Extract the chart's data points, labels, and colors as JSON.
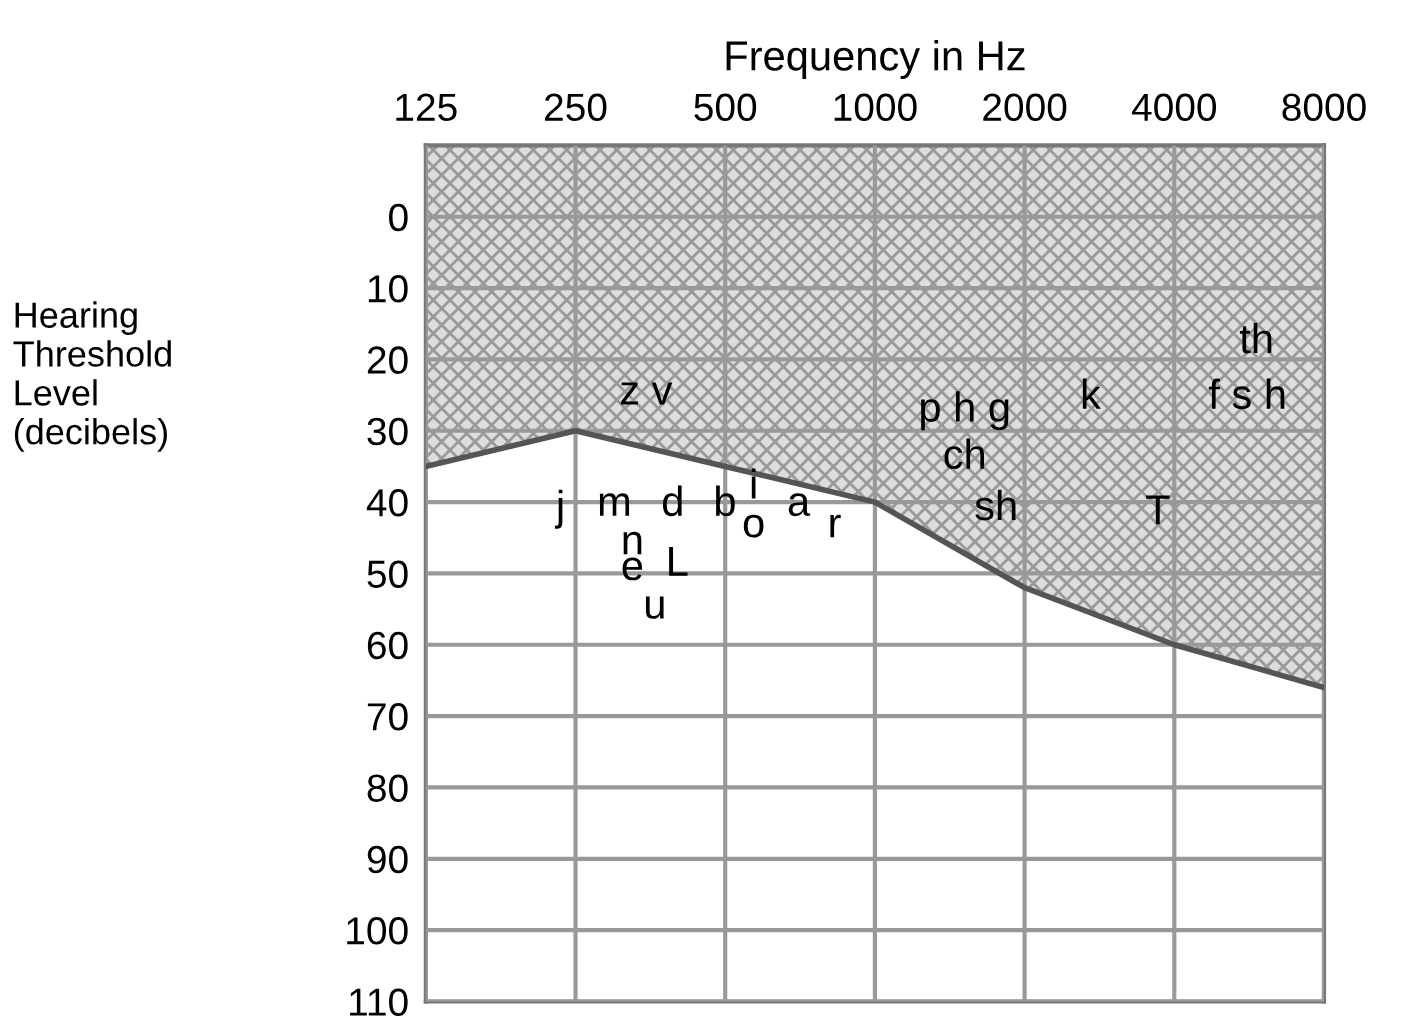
{
  "chart_data": {
    "type": "line",
    "xlabel": "Frequency in Hz",
    "ylabel": "Hearing\nThreshold\nLevel\n(decibels)",
    "x": [
      125,
      250,
      500,
      1000,
      2000,
      4000,
      8000
    ],
    "series": [
      {
        "color": "#555555",
        "values": [
          35,
          30,
          35,
          40,
          52,
          60,
          66
        ],
        "lower": [
          -10,
          -10,
          -10,
          -10,
          -10,
          -10,
          -10
        ],
        "upper": [
          35,
          30,
          35,
          40,
          52,
          60,
          66
        ]
      }
    ],
    "log": "x",
    "xlim": [
      125,
      8000
    ],
    "xticks": [
      125,
      250,
      500,
      1000,
      2000,
      4000,
      8000
    ],
    "ylim": [
      110,
      -10
    ],
    "yticks": [
      0,
      10,
      20,
      30,
      40,
      50,
      60,
      70,
      80,
      90,
      100,
      110
    ],
    "grid": true,
    "annotations": [
      "z v",
      "p h g",
      "k",
      "th",
      "f s h",
      "ch",
      "sh",
      "T",
      "j",
      "m",
      "d",
      "b",
      "i",
      "o",
      "a",
      "r",
      "n",
      "e",
      "L",
      "u"
    ]
  }
}
